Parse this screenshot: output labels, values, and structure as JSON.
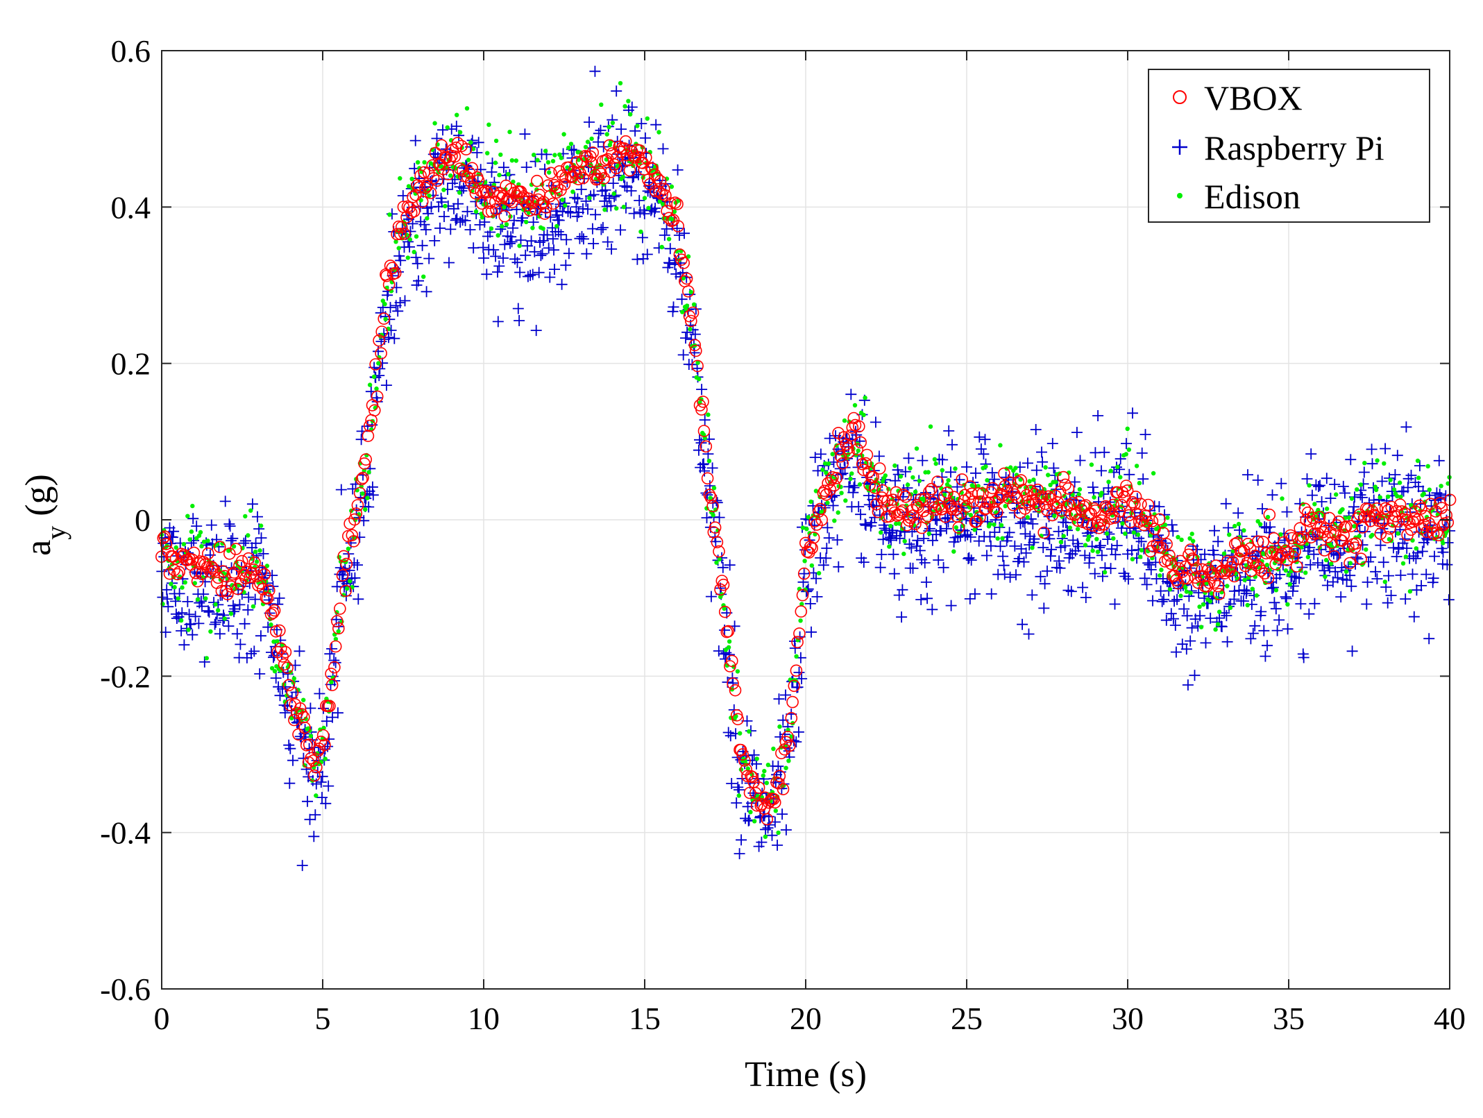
{
  "chart_data": {
    "type": "scatter",
    "title": "",
    "xlabel": "Time (s)",
    "ylabel_main": "a",
    "ylabel_sub": "y",
    "ylabel_unit": "(g)",
    "xlim": [
      0,
      40
    ],
    "ylim": [
      -0.6,
      0.6
    ],
    "xticks": [
      0,
      5,
      10,
      15,
      20,
      25,
      30,
      35,
      40
    ],
    "yticks": [
      -0.6,
      -0.4,
      -0.2,
      0,
      0.2,
      0.4,
      0.6
    ],
    "xtick_labels": [
      "0",
      "5",
      "10",
      "15",
      "20",
      "25",
      "30",
      "35",
      "40"
    ],
    "ytick_labels": [
      "-0.6",
      "-0.4",
      "-0.2",
      "0",
      "0.2",
      "0.4",
      "0.6"
    ],
    "grid": true,
    "legend_position": "top-right",
    "reference_profile": {
      "description": "approximate mean lateral acceleration trace (g) vs time (s)",
      "t": [
        0,
        0.5,
        1,
        1.5,
        2,
        2.5,
        3,
        3.5,
        4,
        4.5,
        4.8,
        5.2,
        5.6,
        6,
        6.5,
        7,
        7.5,
        8,
        8.5,
        9,
        9.5,
        10,
        10.5,
        11,
        11.5,
        12,
        12.5,
        13,
        13.5,
        14,
        14.5,
        15,
        15.5,
        16,
        16.5,
        17,
        17.5,
        18,
        18.5,
        19,
        19.5,
        20,
        20.5,
        21,
        21.3,
        21.6,
        22,
        22.5,
        23,
        24,
        25,
        26,
        26.5,
        27,
        28,
        29,
        30,
        30.5,
        31,
        31.5,
        32,
        32.5,
        33,
        33.5,
        34,
        35,
        35.5,
        36,
        36.5,
        37,
        37.5,
        38,
        39,
        40
      ],
      "a": [
        -0.04,
        -0.06,
        -0.05,
        -0.07,
        -0.07,
        -0.06,
        -0.06,
        -0.13,
        -0.22,
        -0.28,
        -0.32,
        -0.24,
        -0.08,
        0.0,
        0.12,
        0.3,
        0.38,
        0.42,
        0.45,
        0.47,
        0.46,
        0.42,
        0.41,
        0.42,
        0.41,
        0.42,
        0.44,
        0.45,
        0.45,
        0.46,
        0.47,
        0.45,
        0.43,
        0.37,
        0.25,
        0.05,
        -0.12,
        -0.3,
        -0.36,
        -0.36,
        -0.28,
        -0.05,
        0.02,
        0.07,
        0.1,
        0.1,
        0.05,
        0.02,
        0.01,
        0.02,
        0.02,
        0.03,
        0.04,
        0.02,
        0.02,
        0.0,
        0.03,
        0.0,
        -0.03,
        -0.07,
        -0.06,
        -0.08,
        -0.07,
        -0.05,
        -0.05,
        -0.04,
        -0.01,
        0.0,
        -0.02,
        -0.02,
        0.0,
        0.0,
        0.0,
        0.0
      ]
    },
    "series": [
      {
        "name": "VBOX",
        "marker": "circle",
        "color": "#ff0000",
        "noise": 0.012,
        "spread": 0.008,
        "step": 0.05
      },
      {
        "name": "Raspberry Pi",
        "marker": "plus",
        "color": "#0000cc",
        "noise": 0.045,
        "spread": 0.03,
        "step": 0.025
      },
      {
        "name": "Edison",
        "marker": "dot",
        "color": "#00ee00",
        "noise": 0.03,
        "spread": 0.015,
        "step": 0.04
      }
    ]
  }
}
